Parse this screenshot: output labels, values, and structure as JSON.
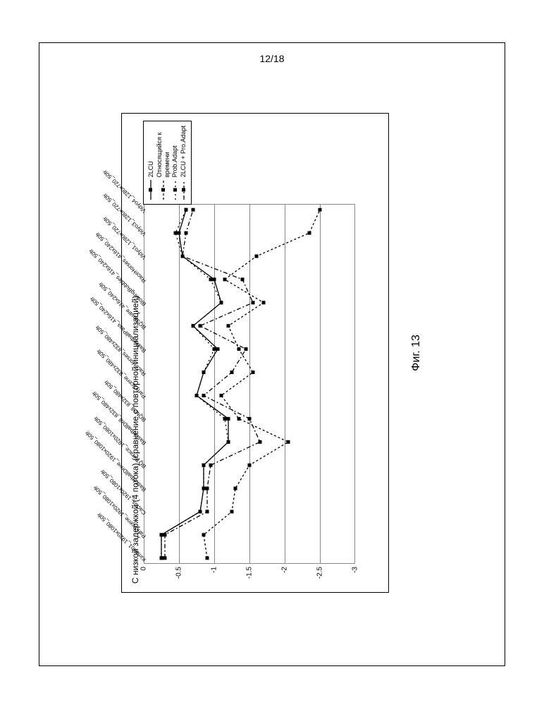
{
  "page_number": "12/18",
  "figure_caption": "Фиг. 13",
  "chart": {
    "type": "line",
    "title": "С низкой задержкой (4 потока) (сравнение с повторной инициализацией)",
    "title_fontsize": 12,
    "x_labels": [
      "Kimono1_1920x1080_50fr",
      "ParkScene_1920x1080_50fr",
      "Cactus_1920x1080_50fr",
      "BasketballDrive_1920x1080_50fr",
      "BQTerrace_1920x1080_50fr",
      "BasketballDrill_832x480_50fr",
      "BQMall_832x480_50fr",
      "PartyScene_832x480_50fr",
      "RaceHorses_832x480_50fr",
      "BasketballPass_416x240_50fr",
      "BQSquare_416x240_50fr",
      "BlowingBubbles_416x240_50fr",
      "RaceHorses_416x240_50fr",
      "Vidyo1_1280x720_50fr",
      "Vidyo3_1280x720_50fr",
      "Vidyo4_1280x720_50fr"
    ],
    "y_ticks": [
      0,
      -0.5,
      -1,
      -1.5,
      -2,
      -2.5,
      -3
    ],
    "ylim": [
      -3,
      0
    ],
    "series": [
      {
        "name": "2LCU",
        "values": [
          -0.25,
          -0.25,
          -0.8,
          -0.85,
          -0.85,
          -1.2,
          -1.2,
          -0.75,
          -0.85,
          -1.05,
          -0.7,
          -1.1,
          -1.0,
          -0.55,
          -0.5,
          -0.6
        ],
        "color": "#000",
        "dash": "",
        "marker": true
      },
      {
        "name": "Относящийся к времени",
        "values": [
          -0.9,
          -0.85,
          -1.25,
          -1.3,
          -1.5,
          -2.05,
          -1.35,
          -1.1,
          -1.55,
          -1.35,
          -1.2,
          -1.7,
          -1.15,
          -1.6,
          -2.35,
          -2.5
        ],
        "color": "#000",
        "dash": "3,3",
        "marker": true
      },
      {
        "name": "Prob.Adapt",
        "values": [
          -0.25,
          -0.25,
          -0.8,
          -0.85,
          -0.85,
          -1.2,
          -1.15,
          -0.75,
          -0.85,
          -1.0,
          -0.7,
          -1.1,
          -0.95,
          -0.55,
          -0.45,
          -0.6
        ],
        "color": "#000",
        "dash": "2,4",
        "marker": true
      },
      {
        "name": "2LCU + Pro.Adapt",
        "values": [
          -0.3,
          -0.3,
          -0.9,
          -0.9,
          -0.95,
          -1.65,
          -1.5,
          -0.85,
          -1.25,
          -1.45,
          -0.8,
          -1.55,
          -1.4,
          -0.55,
          -0.6,
          -0.7
        ],
        "color": "#000",
        "dash": "6,3,2,3",
        "marker": true
      }
    ],
    "grid_color": "#888",
    "background_color": "#ffffff",
    "label_fontsize": 8
  },
  "legend": {
    "items": [
      {
        "label": "2LCU",
        "dash": ""
      },
      {
        "label": "Относящийся к\nвремени",
        "dash": "3,3"
      },
      {
        "label": "Prob.Adapt",
        "dash": "2,4"
      },
      {
        "label": "2LCU + Pro.Adapt",
        "dash": "6,3,2,3"
      }
    ]
  }
}
